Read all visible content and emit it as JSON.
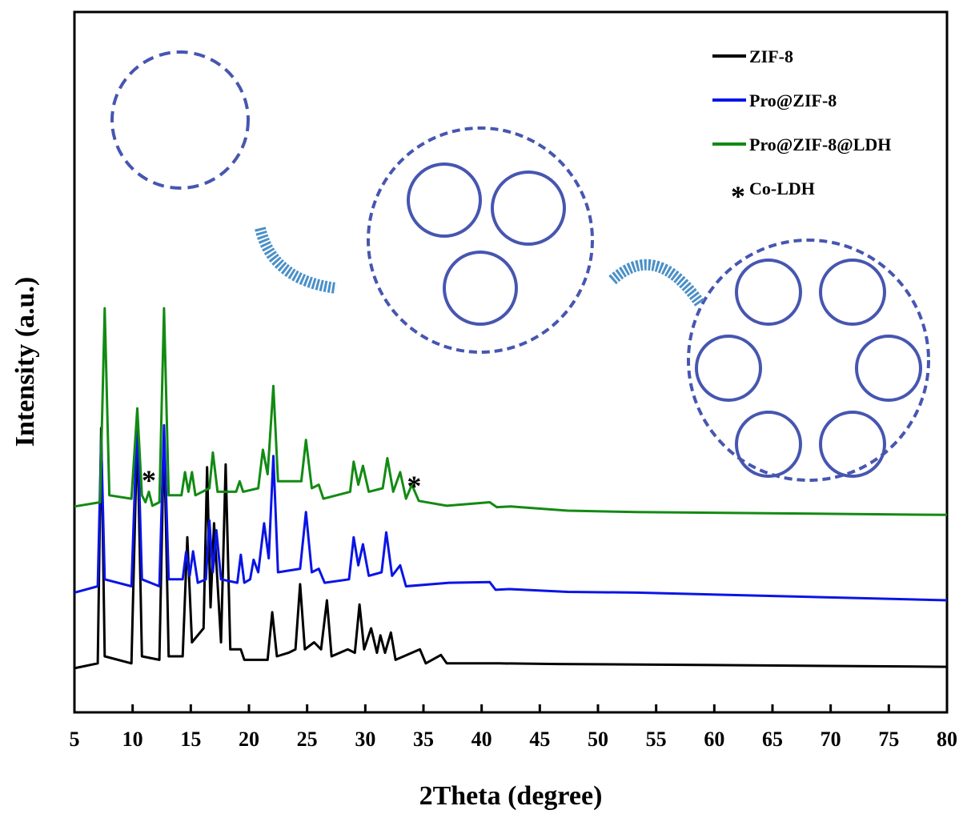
{
  "chart_data": {
    "type": "line",
    "xlabel": "2Theta (degree)",
    "ylabel": "Intensity (a.u.)",
    "xlim": [
      5,
      80
    ],
    "ylim": [
      0,
      100
    ],
    "xticks": [
      5,
      10,
      15,
      20,
      25,
      30,
      35,
      40,
      45,
      50,
      55,
      60,
      65,
      70,
      75,
      80
    ],
    "series": [
      {
        "name": "ZIF-8",
        "color": "#000000",
        "x": [
          5,
          7.0,
          7.3,
          7.6,
          9.9,
          10.4,
          10.8,
          12.3,
          12.7,
          13.1,
          14.3,
          14.7,
          15.1,
          16.1,
          16.4,
          16.7,
          17.0,
          17.6,
          18.0,
          18.4,
          19.3,
          19.6,
          21.6,
          22.0,
          22.4,
          23.4,
          24.0,
          24.4,
          24.8,
          25.6,
          26.2,
          26.7,
          27.1,
          28.5,
          29.1,
          29.5,
          29.9,
          30.5,
          31.0,
          31.3,
          31.7,
          32.2,
          32.6,
          34.7,
          35.2,
          36.5,
          37.0,
          41.5,
          46.5,
          56.0,
          80
        ],
        "values": [
          6.3,
          7,
          40.6,
          8,
          7,
          40.6,
          8,
          7.5,
          40,
          8,
          8,
          25,
          10,
          12,
          35,
          15,
          27,
          10,
          35.4,
          9,
          9,
          7.5,
          7.5,
          14.3,
          8,
          8.5,
          9,
          18.3,
          9,
          10,
          9,
          16,
          8,
          9,
          8.5,
          15.4,
          9,
          12,
          8.5,
          11,
          8.5,
          11.4,
          7.5,
          9,
          7,
          8.2,
          7,
          7,
          6.9,
          6.8,
          6.5
        ]
      },
      {
        "name": "Pro@ZIF-8",
        "color": "#0a14e6",
        "x": [
          5,
          7.0,
          7.3,
          7.6,
          9.9,
          10.4,
          10.8,
          12.3,
          12.7,
          13.1,
          14.3,
          14.6,
          14.9,
          15.2,
          15.6,
          16.3,
          16.6,
          16.9,
          17.2,
          17.6,
          19.0,
          19.3,
          19.6,
          20.1,
          20.4,
          20.8,
          21.3,
          21.7,
          22.1,
          22.5,
          24.4,
          24.9,
          25.4,
          26.0,
          26.5,
          28.6,
          29.0,
          29.4,
          29.8,
          30.3,
          31.4,
          31.8,
          32.3,
          33.0,
          33.5,
          37.2,
          40.7,
          41.2,
          42.4,
          47.4,
          53.3,
          80
        ],
        "values": [
          17.1,
          18,
          39,
          19,
          18,
          42,
          19,
          18,
          41,
          19,
          19,
          22.9,
          19.5,
          23,
          18.5,
          19,
          27.4,
          20,
          26,
          19,
          18.5,
          22.5,
          18.5,
          19,
          21.8,
          20,
          27,
          22,
          36.6,
          20,
          20.5,
          28.6,
          20,
          20.5,
          18.5,
          19,
          25,
          21,
          24,
          19.5,
          20,
          25.7,
          19.5,
          21,
          18,
          18.5,
          18.6,
          17.5,
          17.6,
          17.2,
          17.1,
          16.0
        ]
      },
      {
        "name": "Pro@ZIF-8@LDH",
        "color": "#138a13",
        "x": [
          5,
          7.2,
          7.6,
          8.0,
          9.9,
          10.4,
          10.8,
          11.1,
          11.4,
          11.7,
          12.3,
          12.7,
          13.1,
          14.2,
          14.5,
          14.8,
          15.1,
          15.4,
          16.6,
          16.9,
          17.3,
          18.9,
          19.2,
          19.5,
          20.8,
          21.2,
          21.6,
          22.1,
          22.5,
          24.5,
          24.9,
          25.4,
          26.0,
          26.4,
          28.7,
          29.0,
          29.4,
          29.8,
          30.3,
          31.5,
          31.9,
          32.4,
          33.0,
          33.5,
          34.0,
          34.6,
          37.0,
          40.7,
          41.3,
          42.5,
          47.4,
          53.3,
          80
        ],
        "values": [
          29.4,
          30,
          57.7,
          31,
          30.5,
          43.4,
          31,
          30,
          31.5,
          29.5,
          30,
          57.7,
          31,
          31,
          34.3,
          31.5,
          34.3,
          31,
          32,
          37.1,
          31.5,
          31.5,
          33,
          31.5,
          32,
          37.5,
          34,
          46.6,
          33,
          33,
          38.9,
          32,
          32.5,
          30.5,
          31.5,
          35.8,
          32.5,
          35.2,
          31.5,
          32,
          36.3,
          31.5,
          34.3,
          30.5,
          32.5,
          30.2,
          29.5,
          30,
          29.3,
          29.4,
          28.8,
          28.6,
          28.2
        ]
      }
    ],
    "annotations": [
      {
        "text": "*",
        "x": 11.4,
        "y": 34.3
      },
      {
        "text": "*",
        "x": 34.2,
        "y": 33.5
      }
    ],
    "legend_extra": {
      "marker": "*",
      "label": "Co-LDH"
    },
    "legend": "upper right"
  }
}
